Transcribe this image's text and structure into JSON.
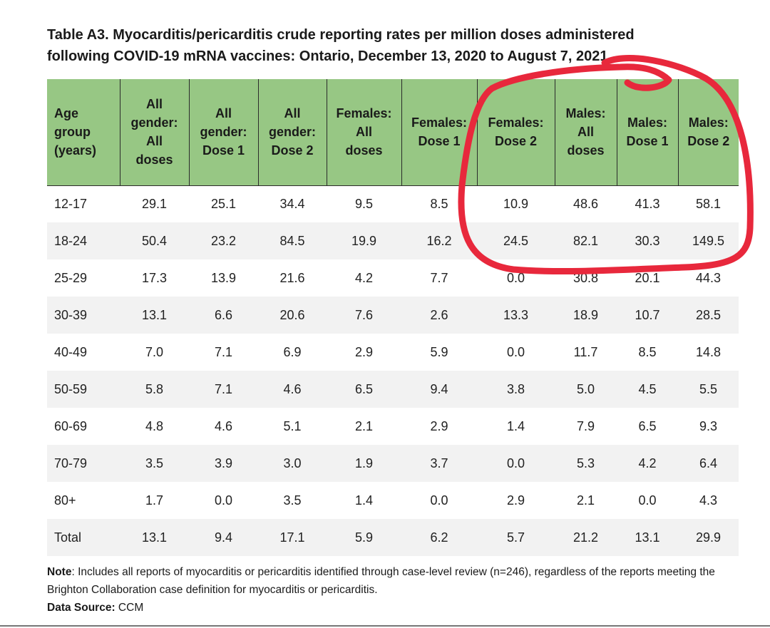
{
  "title": {
    "line1": "Table A3. Myocarditis/pericarditis crude reporting rates per million doses administered",
    "line2": "following COVID-19 mRNA vaccines: Ontario, December 13, 2020 to August 7, 2021"
  },
  "table": {
    "headers": [
      [
        "Age",
        "group",
        "(years)"
      ],
      [
        "All",
        "gender:",
        "All",
        "doses"
      ],
      [
        "All",
        "gender:",
        "Dose 1"
      ],
      [
        "All",
        "gender:",
        "Dose 2"
      ],
      [
        "Females:",
        "All",
        "doses"
      ],
      [
        "Females:",
        "Dose 1"
      ],
      [
        "Females:",
        "Dose 2"
      ],
      [
        "Males:",
        "All",
        "doses"
      ],
      [
        "Males:",
        "Dose 1"
      ],
      [
        "Males:",
        "Dose 2"
      ]
    ],
    "rows": [
      [
        "12-17",
        "29.1",
        "25.1",
        "34.4",
        "9.5",
        "8.5",
        "10.9",
        "48.6",
        "41.3",
        "58.1"
      ],
      [
        "18-24",
        "50.4",
        "23.2",
        "84.5",
        "19.9",
        "16.2",
        "24.5",
        "82.1",
        "30.3",
        "149.5"
      ],
      [
        "25-29",
        "17.3",
        "13.9",
        "21.6",
        "4.2",
        "7.7",
        "0.0",
        "30.8",
        "20.1",
        "44.3"
      ],
      [
        "30-39",
        "13.1",
        "6.6",
        "20.6",
        "7.6",
        "2.6",
        "13.3",
        "18.9",
        "10.7",
        "28.5"
      ],
      [
        "40-49",
        "7.0",
        "7.1",
        "6.9",
        "2.9",
        "5.9",
        "0.0",
        "11.7",
        "8.5",
        "14.8"
      ],
      [
        "50-59",
        "5.8",
        "7.1",
        "4.6",
        "6.5",
        "9.4",
        "3.8",
        "5.0",
        "4.5",
        "5.5"
      ],
      [
        "60-69",
        "4.8",
        "4.6",
        "5.1",
        "2.1",
        "2.9",
        "1.4",
        "7.9",
        "6.5",
        "9.3"
      ],
      [
        "70-79",
        "3.5",
        "3.9",
        "3.0",
        "1.9",
        "3.7",
        "0.0",
        "5.3",
        "4.2",
        "6.4"
      ],
      [
        "80+",
        "1.7",
        "0.0",
        "3.5",
        "1.4",
        "0.0",
        "2.9",
        "2.1",
        "0.0",
        "4.3"
      ],
      [
        "Total",
        "13.1",
        "9.4",
        "17.1",
        "5.9",
        "6.2",
        "5.7",
        "21.2",
        "13.1",
        "29.9"
      ]
    ]
  },
  "note": {
    "label": "Note",
    "text": ": Includes all reports of myocarditis or pericarditis identified through case-level review (n=246), regardless of the reports meeting the Brighton Collaboration case definition for myocarditis or pericarditis.",
    "source_label": "Data Source:",
    "source_value": " CCM"
  },
  "colors": {
    "header_bg": "#97c784",
    "annotation_red": "#e8283c"
  }
}
